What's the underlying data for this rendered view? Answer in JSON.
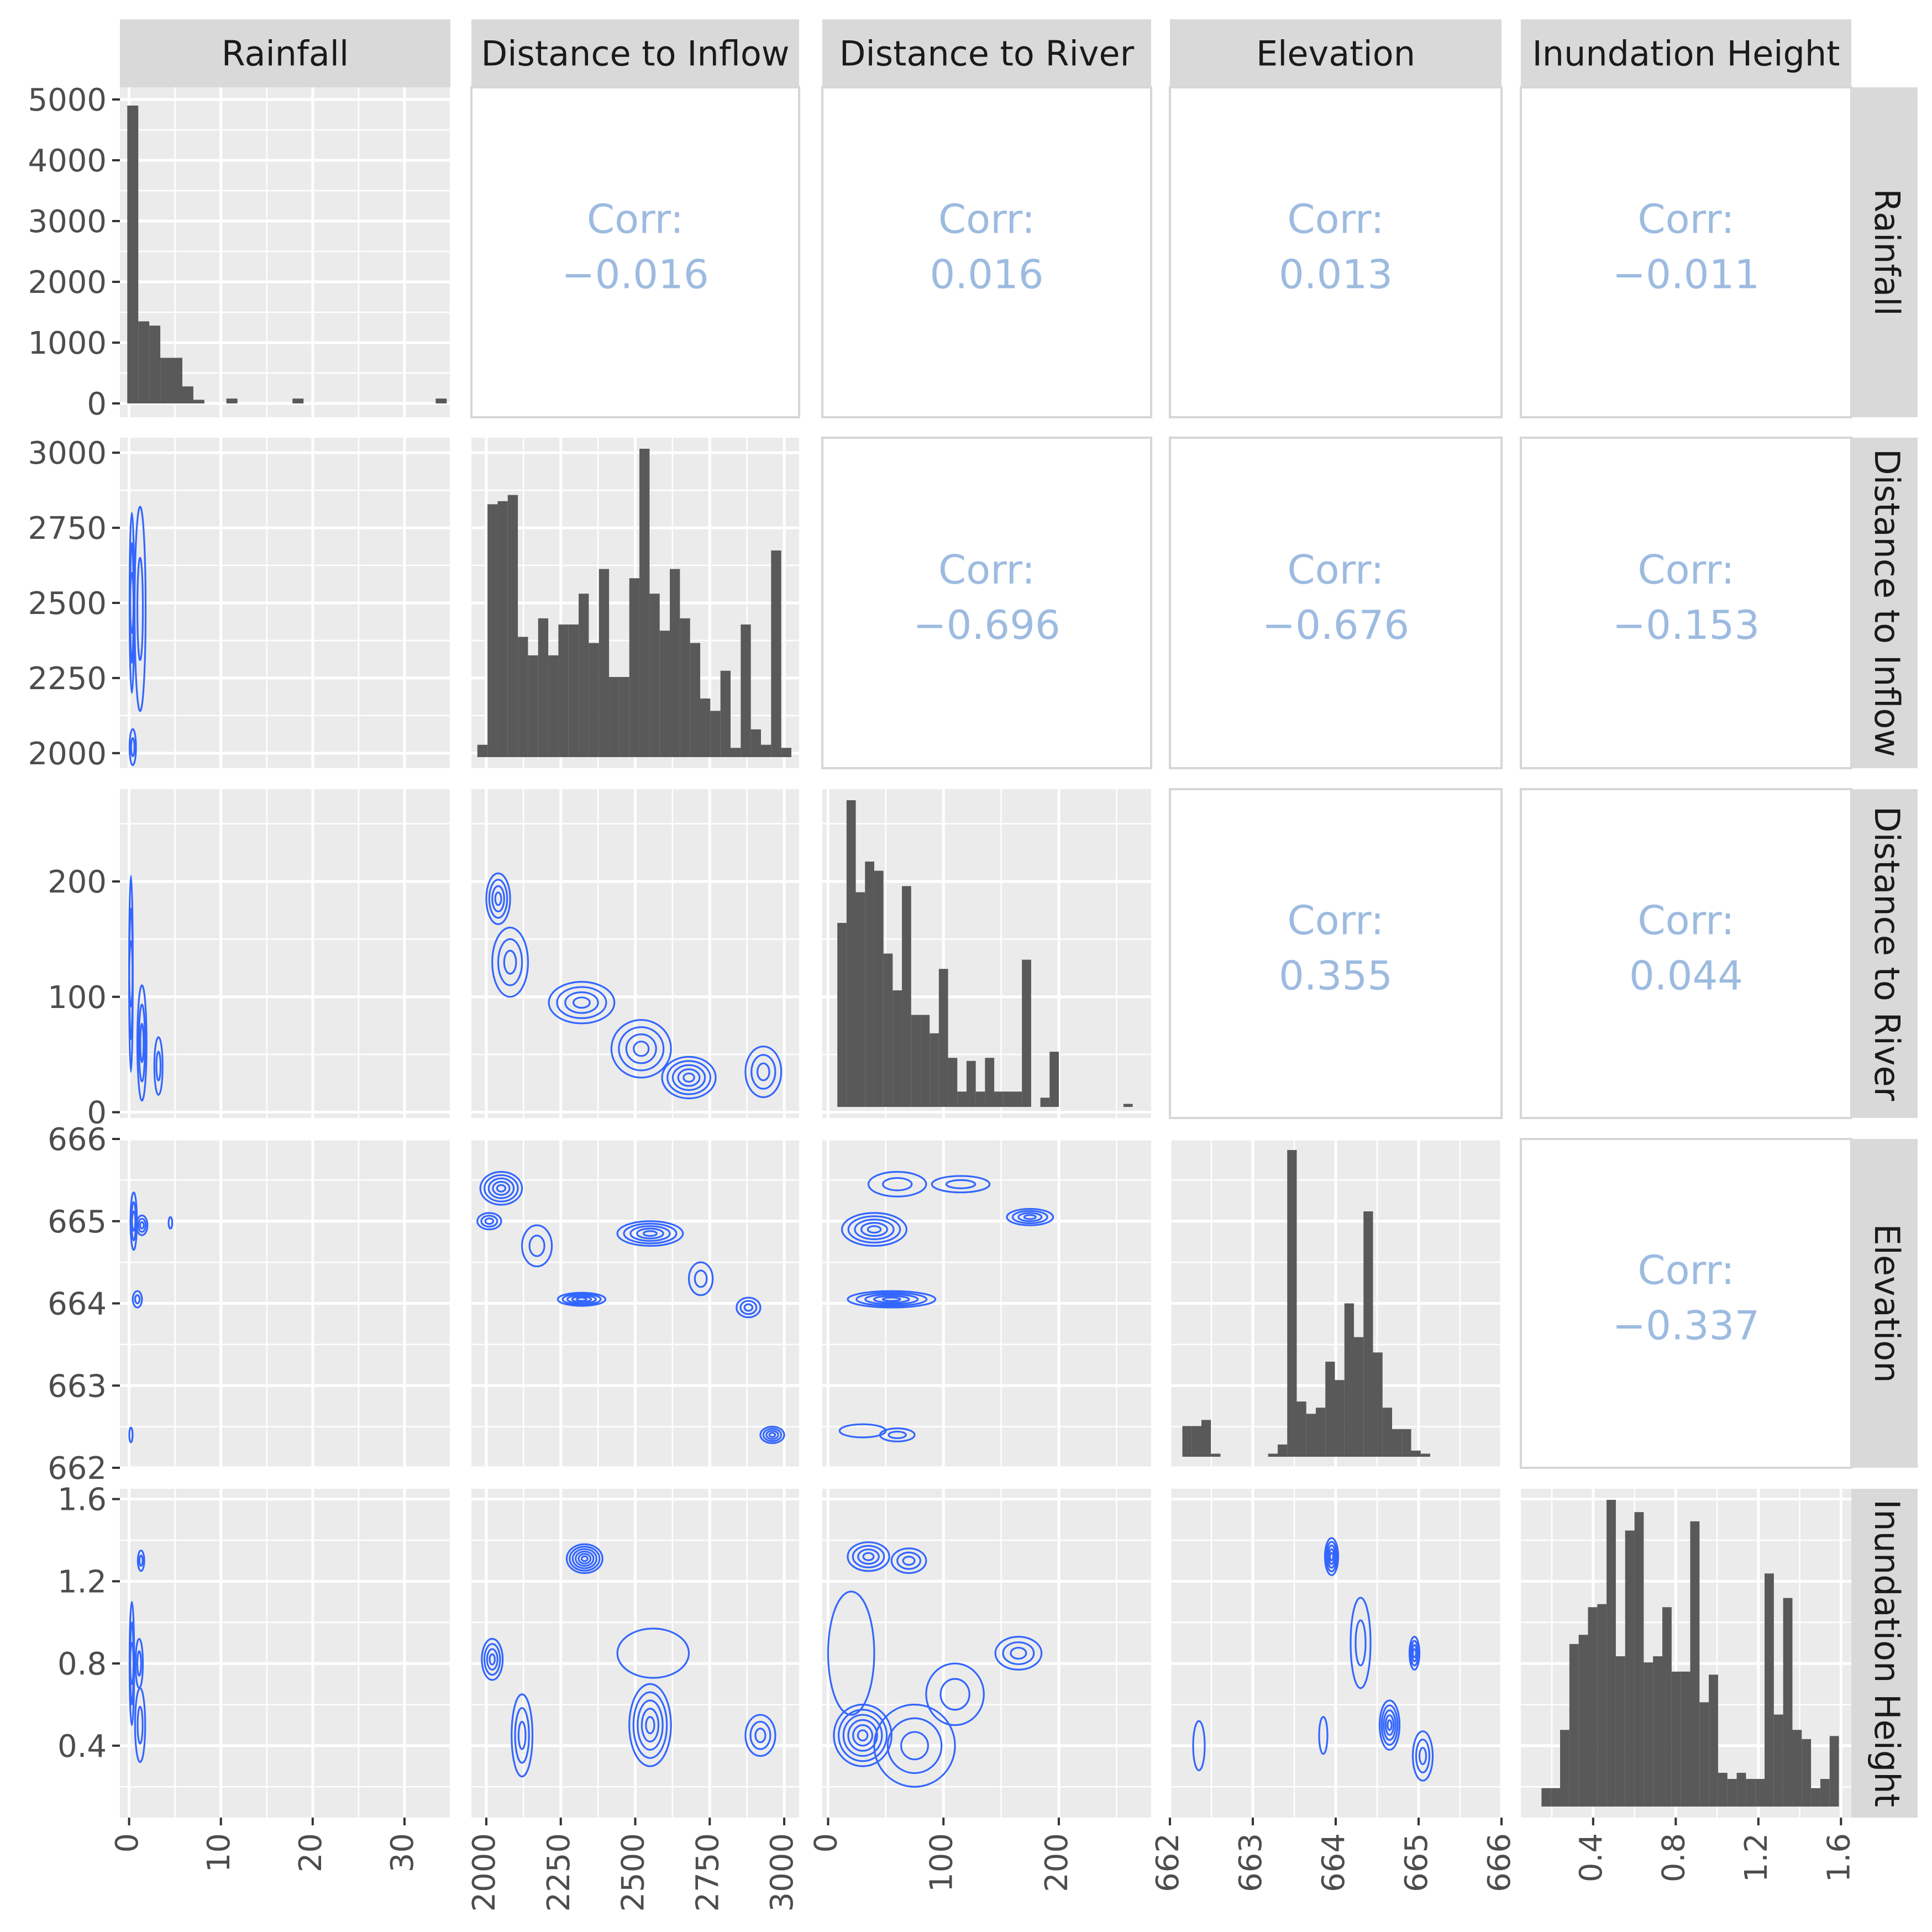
{
  "colors": {
    "panel_bg": "#ebebeb",
    "grid": "#ffffff",
    "strip_bg": "#d9d9d9",
    "bar": "#595959",
    "contour": "#3366ff",
    "corr_text": "#9dbbe0",
    "tick_text": "#4d4d4d"
  },
  "chart_data": {
    "type": "pairs",
    "variables": [
      "Rainfall",
      "Distance to Inflow",
      "Distance to River",
      "Elevation",
      "Inundation Height"
    ],
    "axis_ranges": [
      [
        -1,
        35
      ],
      [
        1950,
        3050
      ],
      [
        -5,
        280
      ],
      [
        662,
        666
      ],
      [
        0.05,
        1.65
      ]
    ],
    "x_ticks": [
      [
        "0",
        "10",
        "20",
        "30"
      ],
      [
        "2000",
        "2250",
        "2500",
        "2750",
        "3000"
      ],
      [
        "0",
        "100",
        "200"
      ],
      [
        "662",
        "663",
        "664",
        "665",
        "666"
      ],
      [
        "0.4",
        "0.8",
        "1.2",
        "1.6"
      ]
    ],
    "y_ticks": [
      [
        "0",
        "1000",
        "2000",
        "3000",
        "4000",
        "5000"
      ],
      [
        "2000",
        "2250",
        "2500",
        "2750",
        "3000"
      ],
      [
        "0",
        "100",
        "200"
      ],
      [
        "662",
        "663",
        "664",
        "665",
        "666"
      ],
      [
        "0.4",
        "0.8",
        "1.2",
        "1.6"
      ]
    ],
    "first_row_count_range": [
      0,
      5000
    ],
    "correlations": [
      {
        "row": 0,
        "col": 1,
        "label": "Corr:",
        "value": "−0.016"
      },
      {
        "row": 0,
        "col": 2,
        "label": "Corr:",
        "value": "0.016"
      },
      {
        "row": 0,
        "col": 3,
        "label": "Corr:",
        "value": "0.013"
      },
      {
        "row": 0,
        "col": 4,
        "label": "Corr:",
        "value": "−0.011"
      },
      {
        "row": 1,
        "col": 2,
        "label": "Corr:",
        "value": "−0.696"
      },
      {
        "row": 1,
        "col": 3,
        "label": "Corr:",
        "value": "−0.676"
      },
      {
        "row": 1,
        "col": 4,
        "label": "Corr:",
        "value": "−0.153"
      },
      {
        "row": 2,
        "col": 3,
        "label": "Corr:",
        "value": "0.355"
      },
      {
        "row": 2,
        "col": 4,
        "label": "Corr:",
        "value": "0.044"
      },
      {
        "row": 3,
        "col": 4,
        "label": "Corr:",
        "value": "−0.337"
      }
    ],
    "histograms": [
      {
        "variable": "Rainfall",
        "x_start": -0.2,
        "bin_width": 1.2,
        "counts": [
          4900,
          1350,
          1280,
          750,
          750,
          280,
          60,
          0,
          0,
          80,
          0,
          0,
          0,
          0,
          0,
          80,
          0,
          0,
          0,
          0,
          0,
          0,
          0,
          0,
          0,
          0,
          0,
          0,
          80
        ]
      },
      {
        "variable": "Distance to Inflow",
        "x_start": 1970,
        "bin_width": 34,
        "counts": [
          0.04,
          0.82,
          0.83,
          0.85,
          0.39,
          0.33,
          0.45,
          0.33,
          0.43,
          0.43,
          0.53,
          0.37,
          0.61,
          0.26,
          0.26,
          0.58,
          1.0,
          0.53,
          0.41,
          0.61,
          0.45,
          0.37,
          0.19,
          0.15,
          0.28,
          0.03,
          0.43,
          0.09,
          0.04,
          0.67,
          0.03
        ]
      },
      {
        "variable": "Distance to River",
        "x_start": 8,
        "bin_width": 8,
        "counts": [
          0.6,
          1.0,
          0.7,
          0.8,
          0.77,
          0.5,
          0.38,
          0.72,
          0.3,
          0.3,
          0.24,
          0.45,
          0.16,
          0.05,
          0.15,
          0.05,
          0.16,
          0.05,
          0.05,
          0.05,
          0.48,
          0.0,
          0.03,
          0.18,
          0.0,
          0.0,
          0.0,
          0.0,
          0.0,
          0.0,
          0.0,
          0.01
        ]
      },
      {
        "variable": "Elevation",
        "x_start": 662.15,
        "bin_width": 0.115,
        "counts": [
          0.1,
          0.1,
          0.12,
          0.01,
          0.0,
          0.0,
          0.0,
          0.0,
          0.0,
          0.01,
          0.04,
          1.0,
          0.18,
          0.14,
          0.16,
          0.31,
          0.25,
          0.5,
          0.39,
          0.8,
          0.34,
          0.16,
          0.09,
          0.09,
          0.02,
          0.01
        ]
      },
      {
        "variable": "Inundation Height",
        "x_start": 0.15,
        "bin_width": 0.045,
        "counts": [
          0.06,
          0.06,
          0.25,
          0.53,
          0.56,
          0.65,
          0.66,
          1.0,
          0.49,
          0.9,
          0.96,
          0.47,
          0.49,
          0.65,
          0.44,
          0.44,
          0.93,
          0.34,
          0.43,
          0.11,
          0.09,
          0.11,
          0.09,
          0.09,
          0.76,
          0.3,
          0.68,
          0.25,
          0.22,
          0.06,
          0.09,
          0.23
        ]
      }
    ],
    "density_contours": [
      {
        "row": 1,
        "col": 0,
        "x_var": "Rainfall",
        "y_var": "Distance to Inflow",
        "modes": [
          {
            "x": 0.3,
            "y": 2500,
            "sx": 0.25,
            "sy": 300,
            "n": 3
          },
          {
            "x": 1.2,
            "y": 2480,
            "sx": 0.6,
            "sy": 340,
            "n": 2
          },
          {
            "x": 0.4,
            "y": 2020,
            "sx": 0.35,
            "sy": 60,
            "n": 2
          }
        ]
      },
      {
        "row": 2,
        "col": 0,
        "x_var": "Rainfall",
        "y_var": "Distance to River",
        "modes": [
          {
            "x": 0.2,
            "y": 120,
            "sx": 0.2,
            "sy": 85,
            "n": 3
          },
          {
            "x": 1.4,
            "y": 60,
            "sx": 0.5,
            "sy": 50,
            "n": 3
          },
          {
            "x": 3.2,
            "y": 40,
            "sx": 0.45,
            "sy": 25,
            "n": 2
          }
        ]
      },
      {
        "row": 2,
        "col": 1,
        "x_var": "Distance to Inflow",
        "y_var": "Distance to River",
        "modes": [
          {
            "x": 2040,
            "y": 185,
            "sx": 40,
            "sy": 22,
            "n": 4
          },
          {
            "x": 2080,
            "y": 130,
            "sx": 60,
            "sy": 30,
            "n": 3
          },
          {
            "x": 2320,
            "y": 95,
            "sx": 110,
            "sy": 18,
            "n": 4
          },
          {
            "x": 2520,
            "y": 55,
            "sx": 100,
            "sy": 25,
            "n": 4
          },
          {
            "x": 2680,
            "y": 30,
            "sx": 90,
            "sy": 18,
            "n": 5
          },
          {
            "x": 2930,
            "y": 35,
            "sx": 60,
            "sy": 22,
            "n": 3
          }
        ]
      },
      {
        "row": 3,
        "col": 0,
        "x_var": "Rainfall",
        "y_var": "Elevation",
        "modes": [
          {
            "x": 0.5,
            "y": 665.0,
            "sx": 0.35,
            "sy": 0.35,
            "n": 3
          },
          {
            "x": 1.4,
            "y": 664.95,
            "sx": 0.6,
            "sy": 0.12,
            "n": 3
          },
          {
            "x": 0.9,
            "y": 664.05,
            "sx": 0.5,
            "sy": 0.1,
            "n": 2
          },
          {
            "x": 4.5,
            "y": 664.98,
            "sx": 0.2,
            "sy": 0.07,
            "n": 1
          },
          {
            "x": 0.2,
            "y": 662.4,
            "sx": 0.15,
            "sy": 0.09,
            "n": 1
          }
        ]
      },
      {
        "row": 3,
        "col": 1,
        "x_var": "Distance to Inflow",
        "y_var": "Elevation",
        "modes": [
          {
            "x": 2050,
            "y": 665.4,
            "sx": 70,
            "sy": 0.2,
            "n": 5
          },
          {
            "x": 2010,
            "y": 665.0,
            "sx": 40,
            "sy": 0.1,
            "n": 3
          },
          {
            "x": 2170,
            "y": 664.7,
            "sx": 50,
            "sy": 0.25,
            "n": 2
          },
          {
            "x": 2320,
            "y": 664.05,
            "sx": 80,
            "sy": 0.08,
            "n": 5
          },
          {
            "x": 2550,
            "y": 664.85,
            "sx": 110,
            "sy": 0.15,
            "n": 5
          },
          {
            "x": 2720,
            "y": 664.3,
            "sx": 40,
            "sy": 0.2,
            "n": 2
          },
          {
            "x": 2880,
            "y": 663.95,
            "sx": 40,
            "sy": 0.12,
            "n": 3
          },
          {
            "x": 2960,
            "y": 662.4,
            "sx": 40,
            "sy": 0.1,
            "n": 4
          }
        ]
      },
      {
        "row": 3,
        "col": 2,
        "x_var": "Distance to River",
        "y_var": "Elevation",
        "modes": [
          {
            "x": 40,
            "y": 664.9,
            "sx": 28,
            "sy": 0.2,
            "n": 5
          },
          {
            "x": 55,
            "y": 664.05,
            "sx": 38,
            "sy": 0.1,
            "n": 5
          },
          {
            "x": 175,
            "y": 665.05,
            "sx": 20,
            "sy": 0.1,
            "n": 4
          },
          {
            "x": 115,
            "y": 665.45,
            "sx": 25,
            "sy": 0.1,
            "n": 2
          },
          {
            "x": 60,
            "y": 665.45,
            "sx": 25,
            "sy": 0.15,
            "n": 2
          },
          {
            "x": 30,
            "y": 662.45,
            "sx": 20,
            "sy": 0.08,
            "n": 1
          },
          {
            "x": 60,
            "y": 662.4,
            "sx": 15,
            "sy": 0.08,
            "n": 2
          }
        ]
      },
      {
        "row": 4,
        "col": 0,
        "x_var": "Rainfall",
        "y_var": "Inundation Height",
        "modes": [
          {
            "x": 0.3,
            "y": 0.8,
            "sx": 0.25,
            "sy": 0.3,
            "n": 3
          },
          {
            "x": 1.2,
            "y": 0.5,
            "sx": 0.55,
            "sy": 0.18,
            "n": 2
          },
          {
            "x": 1.1,
            "y": 0.8,
            "sx": 0.4,
            "sy": 0.12,
            "n": 2
          },
          {
            "x": 1.3,
            "y": 1.3,
            "sx": 0.35,
            "sy": 0.05,
            "n": 2
          }
        ]
      },
      {
        "row": 4,
        "col": 1,
        "x_var": "Distance to Inflow",
        "y_var": "Inundation Height",
        "modes": [
          {
            "x": 2330,
            "y": 1.31,
            "sx": 60,
            "sy": 0.07,
            "n": 6
          },
          {
            "x": 2020,
            "y": 0.82,
            "sx": 35,
            "sy": 0.1,
            "n": 4
          },
          {
            "x": 2120,
            "y": 0.45,
            "sx": 35,
            "sy": 0.2,
            "n": 3
          },
          {
            "x": 2550,
            "y": 0.5,
            "sx": 70,
            "sy": 0.2,
            "n": 5
          },
          {
            "x": 2920,
            "y": 0.45,
            "sx": 50,
            "sy": 0.1,
            "n": 3
          },
          {
            "x": 2560,
            "y": 0.85,
            "sx": 120,
            "sy": 0.12,
            "n": 1
          }
        ]
      },
      {
        "row": 4,
        "col": 2,
        "x_var": "Distance to River",
        "y_var": "Inundation Height",
        "modes": [
          {
            "x": 35,
            "y": 1.32,
            "sx": 18,
            "sy": 0.07,
            "n": 4
          },
          {
            "x": 70,
            "y": 1.3,
            "sx": 15,
            "sy": 0.06,
            "n": 3
          },
          {
            "x": 165,
            "y": 0.85,
            "sx": 20,
            "sy": 0.08,
            "n": 3
          },
          {
            "x": 30,
            "y": 0.45,
            "sx": 25,
            "sy": 0.15,
            "n": 6
          },
          {
            "x": 75,
            "y": 0.4,
            "sx": 35,
            "sy": 0.2,
            "n": 3
          },
          {
            "x": 110,
            "y": 0.65,
            "sx": 25,
            "sy": 0.15,
            "n": 2
          },
          {
            "x": 20,
            "y": 0.85,
            "sx": 20,
            "sy": 0.3,
            "n": 1
          }
        ]
      },
      {
        "row": 4,
        "col": 3,
        "x_var": "Elevation",
        "y_var": "Inundation Height",
        "modes": [
          {
            "x": 663.95,
            "y": 1.32,
            "sx": 0.08,
            "sy": 0.09,
            "n": 5
          },
          {
            "x": 664.3,
            "y": 0.9,
            "sx": 0.12,
            "sy": 0.22,
            "n": 2
          },
          {
            "x": 664.95,
            "y": 0.85,
            "sx": 0.06,
            "sy": 0.08,
            "n": 4
          },
          {
            "x": 664.65,
            "y": 0.5,
            "sx": 0.12,
            "sy": 0.12,
            "n": 5
          },
          {
            "x": 665.05,
            "y": 0.35,
            "sx": 0.12,
            "sy": 0.12,
            "n": 3
          },
          {
            "x": 662.35,
            "y": 0.4,
            "sx": 0.07,
            "sy": 0.12,
            "n": 1
          },
          {
            "x": 663.85,
            "y": 0.45,
            "sx": 0.05,
            "sy": 0.09,
            "n": 1
          }
        ]
      }
    ]
  }
}
